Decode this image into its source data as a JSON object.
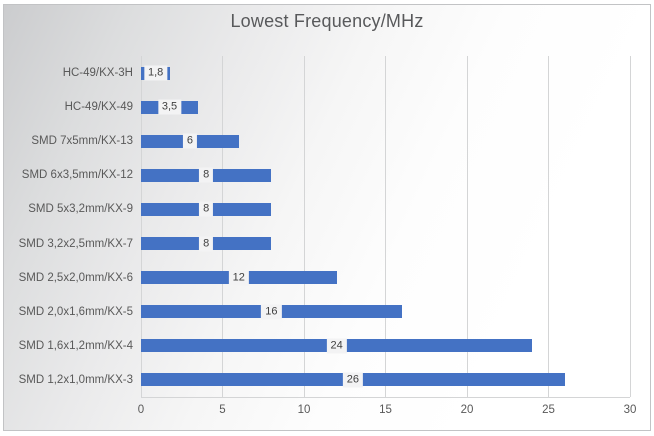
{
  "chart_data": {
    "type": "bar",
    "orientation": "horizontal",
    "title": "Lowest Frequency/MHz",
    "categories": [
      "HC-49/KX-3H",
      "HC-49/KX-49",
      "SMD 7x5mm/KX-13",
      "SMD 6x3,5mm/KX-12",
      "SMD 5x3,2mm/KX-9",
      "SMD 3,2x2,5mm/KX-7",
      "SMD 2,5x2,0mm/KX-6",
      "SMD 2,0x1,6mm/KX-5",
      "SMD 1,6x1,2mm/KX-4",
      "SMD 1,2x1,0mm/KX-3"
    ],
    "values": [
      1.8,
      3.5,
      6,
      8,
      8,
      8,
      12,
      16,
      24,
      26
    ],
    "value_labels": [
      "1,8",
      "3,5",
      "6",
      "8",
      "8",
      "8",
      "12",
      "16",
      "24",
      "26"
    ],
    "xlabel": "",
    "ylabel": "",
    "xlim": [
      0,
      30
    ],
    "x_ticks": [
      0,
      5,
      10,
      15,
      20,
      25,
      30
    ],
    "grid": true,
    "legend": "none",
    "value_labels_position": "center",
    "colors": {
      "bar": "#4472c4",
      "value_label_bg": "#f3f3f4",
      "value_label_text": "#404040",
      "axis_text": "#595959",
      "gridline": "#d4d5d6",
      "frame_border": "#c2c3c5",
      "title_text": "#58595b"
    }
  }
}
